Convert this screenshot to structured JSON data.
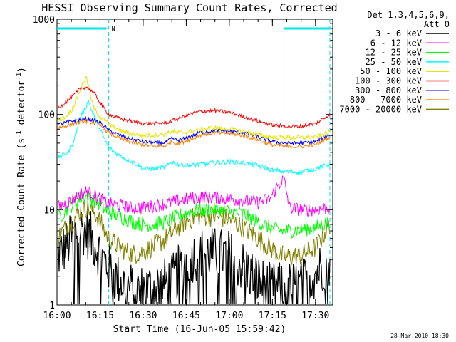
{
  "chart_data": {
    "type": "line",
    "title": "HESSI Observing Summary Count Rates, Corrected",
    "xlabel": "Start Time (16-Jun-05 15:59:42)",
    "ylabel_main": "Corrected Count Rate (s",
    "ylabel_sup1": "-1",
    "ylabel_mid": " detector",
    "ylabel_sup2": "-1",
    "ylabel_end": ")",
    "ylog": true,
    "ylim": [
      1,
      1000
    ],
    "y_ticks": [
      1,
      10,
      100,
      1000
    ],
    "y_tick_labels": [
      "1",
      "10",
      "100",
      "1000"
    ],
    "xlim_min": [
      0,
      96
    ],
    "x_ticks_min": [
      0,
      15,
      30,
      45,
      60,
      75,
      90
    ],
    "x_tick_labels": [
      "16:00",
      "16:15",
      "16:30",
      "16:45",
      "17:00",
      "17:15",
      "17:30"
    ],
    "legend_header": [
      "Det 1,3,4,5,6,9,",
      "Att 0"
    ],
    "legend_placement": "top-right-outside",
    "timestamp": "28-Mar-2010 18:30",
    "night_marker_label": "N",
    "day_intervals_min": [
      [
        0,
        18
      ],
      [
        79,
        96
      ]
    ],
    "dashed_lines_min": [
      18,
      95
    ],
    "solid_lines_min": [
      79
    ],
    "series": [
      {
        "name": "3 - 6 keV",
        "color": "#000000",
        "x": [
          0,
          4,
          8,
          10,
          12,
          14,
          16,
          18,
          20,
          24,
          28,
          32,
          36,
          40,
          45,
          50,
          55,
          60,
          65,
          70,
          74,
          78,
          80,
          85,
          90,
          95
        ],
        "y": [
          3.2,
          4.5,
          6.5,
          6.0,
          5.0,
          4.0,
          3.0,
          2.5,
          2.0,
          1.6,
          1.4,
          1.5,
          1.6,
          1.8,
          3.0,
          3.5,
          3.5,
          3.3,
          2.5,
          1.8,
          1.5,
          1.5,
          1.5,
          1.6,
          2.2,
          3.0
        ]
      },
      {
        "name": "6 - 12 keV",
        "color": "#ff00ff",
        "x": [
          0,
          4,
          8,
          10,
          12,
          14,
          16,
          18,
          22,
          26,
          30,
          34,
          38,
          42,
          46,
          50,
          55,
          60,
          65,
          70,
          74,
          77,
          79,
          81,
          85,
          90,
          95
        ],
        "y": [
          10.5,
          12,
          14.5,
          15.5,
          15,
          13.5,
          12.5,
          11.5,
          11,
          10.5,
          10.5,
          11,
          11.5,
          12.5,
          13,
          13.5,
          13.5,
          13,
          12.5,
          12,
          13,
          18,
          21,
          10.5,
          10,
          10,
          10.5
        ]
      },
      {
        "name": "12 - 25 keV",
        "color": "#00ff00",
        "x": [
          0,
          4,
          8,
          10,
          12,
          14,
          16,
          18,
          22,
          26,
          30,
          34,
          38,
          42,
          46,
          50,
          55,
          60,
          65,
          70,
          74,
          78,
          80,
          85,
          90,
          95
        ],
        "y": [
          8,
          10.5,
          13,
          14,
          13,
          12,
          10.5,
          9.5,
          8.5,
          7.5,
          7,
          7,
          7.5,
          8.5,
          9.5,
          10,
          10,
          9.5,
          9,
          7.5,
          6.5,
          6,
          6,
          6.2,
          6.5,
          7.5
        ]
      },
      {
        "name": "25 - 50 keV",
        "color": "#00ffff",
        "x": [
          0,
          4,
          6,
          8,
          10,
          11,
          12,
          14,
          16,
          18,
          20,
          24,
          28,
          30,
          34,
          38,
          40,
          42,
          46,
          50,
          55,
          60,
          65,
          70,
          75,
          80,
          85,
          90,
          95
        ],
        "y": [
          35,
          40,
          55,
          90,
          120,
          140,
          110,
          80,
          60,
          45,
          40,
          34,
          30,
          27,
          27,
          28,
          32,
          30,
          29,
          30,
          31,
          32,
          31,
          29,
          26,
          25,
          25,
          27,
          30
        ]
      },
      {
        "name": "50 - 100 keV",
        "color": "#e6e600",
        "x": [
          0,
          3,
          5,
          7,
          9,
          10,
          11,
          12,
          13,
          15,
          17,
          19,
          22,
          26,
          30,
          34,
          38,
          40,
          42,
          46,
          50,
          55,
          60,
          65,
          70,
          75,
          80,
          85,
          90,
          95
        ],
        "y": [
          85,
          95,
          110,
          150,
          210,
          250,
          200,
          140,
          115,
          95,
          85,
          75,
          68,
          63,
          60,
          61,
          62,
          67,
          64,
          66,
          70,
          72,
          70,
          66,
          62,
          58,
          57,
          57,
          58,
          65
        ]
      },
      {
        "name": "100 - 300 keV",
        "color": "#ff0000",
        "x": [
          0,
          3,
          6,
          8,
          10,
          12,
          14,
          16,
          18,
          22,
          26,
          30,
          34,
          38,
          42,
          46,
          50,
          55,
          60,
          65,
          70,
          75,
          80,
          85,
          90,
          95
        ],
        "y": [
          115,
          135,
          160,
          185,
          195,
          180,
          150,
          120,
          100,
          90,
          85,
          80,
          80,
          82,
          90,
          100,
          108,
          110,
          105,
          95,
          85,
          78,
          75,
          75,
          80,
          100
        ]
      },
      {
        "name": "300 - 800 keV",
        "color": "#0000ff",
        "x": [
          0,
          3,
          6,
          8,
          10,
          12,
          14,
          16,
          18,
          22,
          26,
          30,
          34,
          38,
          40,
          42,
          46,
          50,
          55,
          60,
          65,
          70,
          75,
          80,
          85,
          90,
          95
        ],
        "y": [
          78,
          82,
          86,
          88,
          90,
          88,
          84,
          78,
          68,
          60,
          55,
          52,
          50,
          51,
          56,
          53,
          58,
          65,
          68,
          67,
          64,
          58,
          52,
          50,
          50,
          52,
          62
        ]
      },
      {
        "name": "800 - 7000 keV",
        "color": "#ff7f00",
        "x": [
          0,
          3,
          6,
          8,
          10,
          12,
          14,
          16,
          18,
          22,
          26,
          30,
          34,
          38,
          40,
          42,
          46,
          50,
          55,
          60,
          65,
          70,
          75,
          80,
          85,
          90,
          95
        ],
        "y": [
          72,
          76,
          80,
          83,
          85,
          83,
          79,
          73,
          64,
          56,
          51,
          48,
          46,
          47,
          52,
          49,
          54,
          61,
          64,
          63,
          60,
          54,
          48,
          46,
          46,
          48,
          58
        ]
      },
      {
        "name": "7000 - 20000 keV",
        "color": "#808000",
        "x": [
          0,
          4,
          8,
          10,
          12,
          14,
          16,
          18,
          22,
          26,
          30,
          34,
          38,
          42,
          46,
          50,
          55,
          60,
          65,
          70,
          74,
          78,
          80,
          85,
          90,
          95
        ],
        "y": [
          5,
          7,
          9.5,
          10.5,
          10,
          8.5,
          6.5,
          5,
          4,
          3.4,
          3.6,
          4.2,
          5,
          6.5,
          8,
          8.5,
          8.5,
          8,
          6.5,
          5,
          4,
          3.3,
          3.2,
          3.3,
          4,
          7
        ]
      }
    ]
  }
}
